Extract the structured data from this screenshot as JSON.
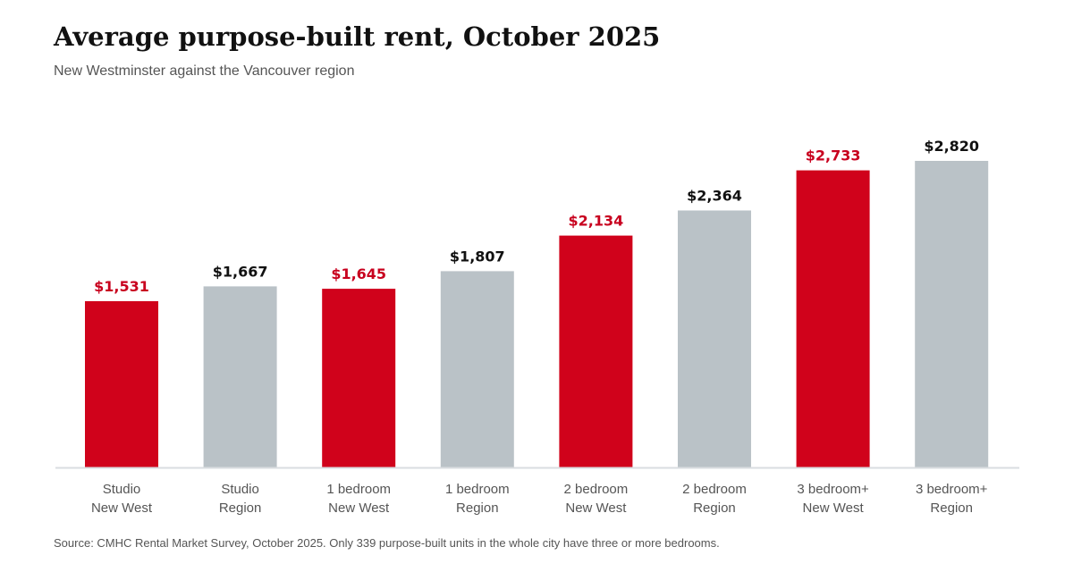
{
  "title": "Average purpose-built rent, October 2025",
  "subtitle": "New Westminster against the Vancouver region",
  "source": "Source: CMHC Rental Market Survey, October 2025. Only 339 purpose-built units in the whole city have three or more bedrooms.",
  "colors": {
    "new_west": "#d0021b",
    "region": "#bac2c7",
    "axis": "#d9dde0",
    "label_new_west": "#c8001e",
    "label_region": "#111111",
    "tick_text": "#555555"
  },
  "chart_data": {
    "type": "bar",
    "title": "Average purpose-built rent, October 2025",
    "subtitle": "New Westminster against the Vancouver region",
    "xlabel": "",
    "ylabel": "",
    "ylim": [
      0,
      3040
    ],
    "grid": false,
    "categories": [
      [
        "Studio",
        "New West"
      ],
      [
        "Studio",
        "Region"
      ],
      [
        "1 bedroom",
        "New West"
      ],
      [
        "1 bedroom",
        "Region"
      ],
      [
        "2 bedroom",
        "New West"
      ],
      [
        "2 bedroom",
        "Region"
      ],
      [
        "3 bedroom+",
        "New West"
      ],
      [
        "3 bedroom+",
        "Region"
      ]
    ],
    "values": [
      1531,
      1667,
      1645,
      1807,
      2134,
      2364,
      2733,
      2820
    ],
    "value_labels": [
      "$1,531",
      "$1,667",
      "$1,645",
      "$1,807",
      "$2,134",
      "$2,364",
      "$2,733",
      "$2,820"
    ],
    "groups": [
      "new_west",
      "region",
      "new_west",
      "region",
      "new_west",
      "region",
      "new_west",
      "region"
    ]
  }
}
